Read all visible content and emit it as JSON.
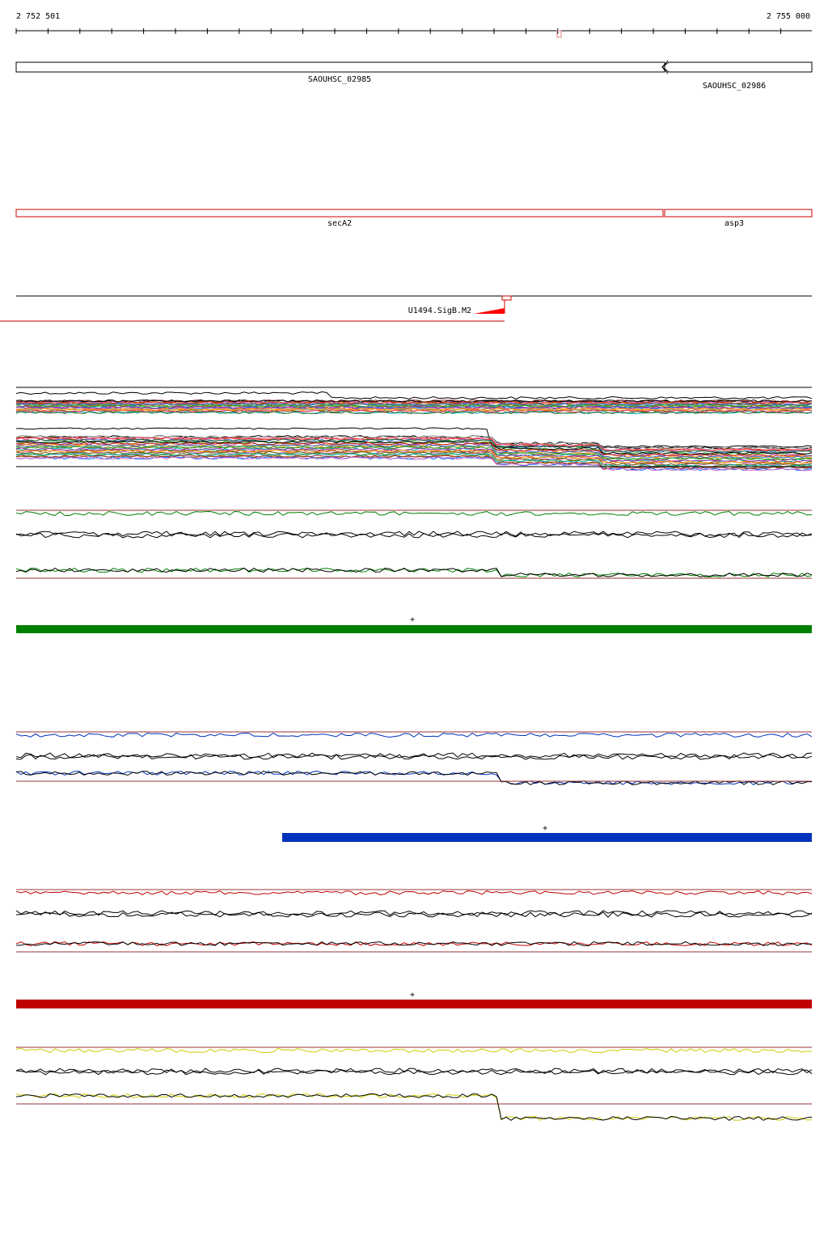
{
  "ruler": {
    "start_label": "2 752 501",
    "end_label": "2 755 000",
    "start_bp": 2752501,
    "end_bp": 2755000
  },
  "genes": [
    {
      "name": "SAOUHSC_02985",
      "start_bp": 2752501,
      "end_bp": 2754540,
      "strand": "-"
    },
    {
      "name": "SAOUHSC_02986",
      "start_bp": 2754540,
      "end_bp": 2755000,
      "strand": "-"
    }
  ],
  "gene_labels": [
    {
      "name": "secA2",
      "start_bp": 2752501,
      "end_bp": 2754535
    },
    {
      "name": "asp3",
      "start_bp": 2754545,
      "end_bp": 2755000
    }
  ],
  "promoter": {
    "label": "U1494.SigB.M2",
    "position_bp": 2754040,
    "strand": "-"
  },
  "conditions": [
    {
      "name": "",
      "color": "#008000",
      "strand_marker": "+"
    },
    {
      "name": "",
      "color": "#0033bb",
      "strand_marker": "+"
    },
    {
      "name": "",
      "color": "#c00000",
      "strand_marker": "+"
    },
    {
      "name": "",
      "color": "#cccc00",
      "strand_marker": ""
    }
  ],
  "colors": {
    "gene_outline": "#000000",
    "annotation_outline": "#cc0000",
    "ruler": "#000000",
    "baseline": "#993333"
  }
}
